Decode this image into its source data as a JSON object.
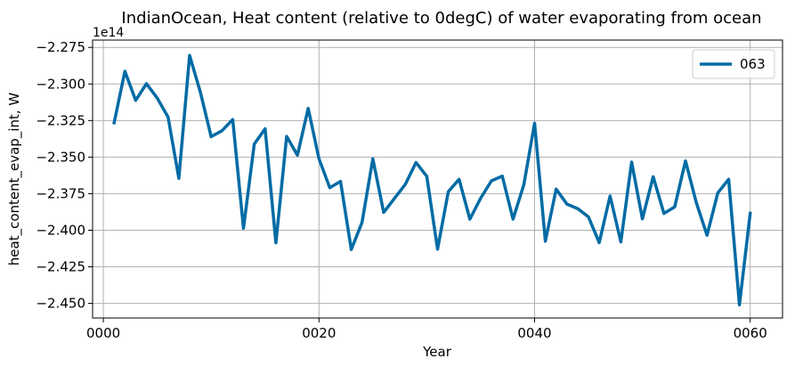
{
  "chart_data": {
    "type": "line",
    "title": "IndianOcean, Heat content (relative to 0degC) of water evaporating from ocean",
    "xlabel": "Year",
    "ylabel": "heat_content_evap_int, W",
    "offset_text": "1e14",
    "xlim": [
      -1,
      63
    ],
    "ylim": [
      -2.46,
      -2.27
    ],
    "xticks": [
      0,
      20,
      40,
      60
    ],
    "xtick_labels": [
      "0000",
      "0020",
      "0040",
      "0060"
    ],
    "yticks": [
      -2.275,
      -2.3,
      -2.325,
      -2.35,
      -2.375,
      -2.4,
      -2.425,
      -2.45
    ],
    "ytick_labels": [
      "−2.275",
      "−2.300",
      "−2.325",
      "−2.350",
      "−2.375",
      "−2.400",
      "−2.425",
      "−2.450"
    ],
    "grid": true,
    "legend_position": "top-right",
    "series": [
      {
        "name": "063",
        "color": "#006ba4",
        "x": [
          1,
          2,
          3,
          4,
          5,
          6,
          7,
          8,
          9,
          10,
          11,
          12,
          13,
          14,
          15,
          16,
          17,
          18,
          19,
          20,
          21,
          22,
          23,
          24,
          25,
          26,
          27,
          28,
          29,
          30,
          31,
          32,
          33,
          34,
          35,
          36,
          37,
          38,
          39,
          40,
          41,
          42,
          43,
          44,
          45,
          46,
          47,
          48,
          49,
          50,
          51,
          52,
          53,
          54,
          55,
          56,
          57,
          58,
          59,
          60
        ],
        "values": [
          -2.3265,
          -2.2913,
          -2.3112,
          -2.2998,
          -2.3097,
          -2.3227,
          -2.3645,
          -2.2805,
          -2.3057,
          -2.336,
          -2.332,
          -2.3243,
          -2.3987,
          -2.3411,
          -2.3306,
          -2.4086,
          -2.3358,
          -2.3487,
          -2.3167,
          -2.3511,
          -2.3709,
          -2.3666,
          -2.4132,
          -2.3946,
          -2.3512,
          -2.3878,
          -2.3782,
          -2.3687,
          -2.3537,
          -2.3631,
          -2.413,
          -2.3736,
          -2.3652,
          -2.3924,
          -2.3781,
          -2.3662,
          -2.363,
          -2.3924,
          -2.3689,
          -2.3268,
          -2.4075,
          -2.3719,
          -2.3821,
          -2.3852,
          -2.3909,
          -2.4085,
          -2.3766,
          -2.408,
          -2.3534,
          -2.3922,
          -2.3634,
          -2.3885,
          -2.384,
          -2.3526,
          -2.381,
          -2.4034,
          -2.3745,
          -2.3651,
          -2.451,
          -2.3884
        ]
      }
    ]
  }
}
